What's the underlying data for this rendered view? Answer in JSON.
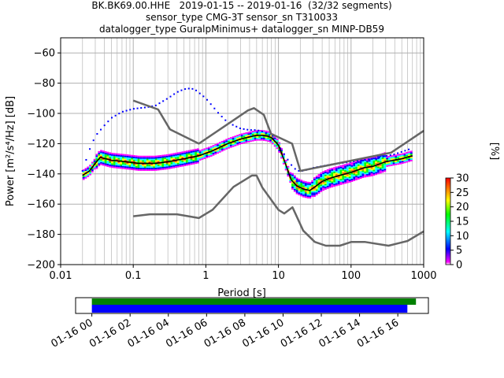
{
  "chart_data": [
    {
      "type": "line",
      "subtype": "probabilistic-power-spectral-density",
      "title_lines": [
        "BK.BK69.00.HHE   2019-01-15 -- 2019-01-16  (32/32 segments)",
        "sensor_type CMG-3T sensor_sn T310033",
        "datalogger_type GuralpMinimus+ datalogger_sn MINP-DB59"
      ],
      "xlabel": "Period [s]",
      "ylabel": "Power [m²/s⁴/Hz] [dB]",
      "xscale": "log",
      "xlim": [
        0.01,
        1000
      ],
      "ylim": [
        -200,
        -50
      ],
      "x_ticks": [
        0.01,
        0.1,
        1,
        10,
        100,
        1000
      ],
      "x_tick_labels": [
        "0.01",
        "0.1",
        "1",
        "10",
        "100",
        "1000"
      ],
      "y_ticks": [
        -200,
        -180,
        -160,
        -140,
        -120,
        -100,
        -80,
        -60
      ],
      "y_tick_labels": [
        "−200",
        "−180",
        "−160",
        "−140",
        "−120",
        "−100",
        "−80",
        "−60"
      ],
      "grid": true,
      "colorbar": {
        "label": "[%]",
        "range": [
          0,
          30
        ],
        "ticks": [
          0,
          5,
          10,
          15,
          20,
          25,
          30
        ],
        "tick_labels": [
          "0",
          "5",
          "10",
          "15",
          "20",
          "25",
          "30"
        ],
        "colors": [
          "#ffffff",
          "#ff00ff",
          "#0000ff",
          "#00ffff",
          "#00ff00",
          "#ffff00",
          "#ff8000",
          "#ff0000"
        ]
      },
      "series": [
        {
          "role": "mode",
          "color": "#000000",
          "x": [
            0.02,
            0.025,
            0.03,
            0.035,
            0.05,
            0.08,
            0.12,
            0.2,
            0.3,
            0.5,
            0.8,
            1.2,
            2,
            3,
            4,
            5,
            6,
            7,
            8,
            10,
            12,
            15,
            18,
            22,
            27,
            33,
            40,
            50,
            70,
            100,
            150,
            200,
            300,
            500,
            700
          ],
          "y": [
            -141,
            -138,
            -133,
            -129,
            -131,
            -132,
            -133,
            -133,
            -132,
            -130,
            -128,
            -125,
            -120,
            -117,
            -115.5,
            -114.5,
            -114.5,
            -115,
            -116,
            -121,
            -131,
            -144,
            -148,
            -150,
            -151,
            -148,
            -145,
            -143,
            -141,
            -139,
            -136,
            -135,
            -132,
            -130,
            -128
          ]
        },
        {
          "role": "noise-model-high",
          "color": "#666666",
          "x": [
            0.1,
            0.22,
            0.32,
            0.8,
            3.8,
            4.6,
            6.3,
            7.9,
            15.4,
            20,
            354.8,
            1000
          ],
          "y": [
            -91.5,
            -97.4,
            -110.5,
            -120,
            -98,
            -96.5,
            -101,
            -113.5,
            -120,
            -138,
            -126,
            -111.5
          ]
        },
        {
          "role": "noise-model-low",
          "color": "#666666",
          "x": [
            0.1,
            0.17,
            0.4,
            0.8,
            1.24,
            2.4,
            4.3,
            5.0,
            6.0,
            10.0,
            12.0,
            15.6,
            21.9,
            31.6,
            45,
            70,
            101,
            154,
            328,
            600,
            1000
          ],
          "y": [
            -168,
            -166.7,
            -166.7,
            -169.2,
            -163.7,
            -148.6,
            -141.1,
            -141.1,
            -149,
            -163.8,
            -166.2,
            -162.1,
            -177.5,
            -185,
            -187.5,
            -187.5,
            -185,
            -185,
            -187.5,
            -184.4,
            -178
          ]
        },
        {
          "role": "ppsd-upper-envelope",
          "color": "#0000ff",
          "x": [
            0.02,
            0.025,
            0.03,
            0.04,
            0.05,
            0.07,
            0.1,
            0.15,
            0.2,
            0.3,
            0.4,
            0.5,
            0.6,
            0.7,
            1,
            1.5,
            2,
            3,
            4,
            5,
            6,
            8,
            10,
            12,
            15,
            18,
            22,
            30,
            50,
            100,
            200,
            400,
            700
          ],
          "y": [
            -138,
            -124,
            -115,
            -108,
            -103,
            -99,
            -97,
            -96,
            -95,
            -90,
            -86,
            -84,
            -83.5,
            -84,
            -90,
            -100,
            -106,
            -110,
            -111,
            -111,
            -112,
            -115,
            -121,
            -127,
            -134,
            -138,
            -138,
            -136,
            -134,
            -132,
            -130,
            -127,
            -123
          ]
        }
      ]
    },
    {
      "type": "timeline",
      "x_tick_labels": [
        "01-16 00",
        "01-16 02",
        "01-16 04",
        "01-16 06",
        "01-16 08",
        "01-16 10",
        "01-16 12",
        "01-16 14",
        "01-16 16"
      ],
      "xlim_hours": [
        -0.85,
        17.6
      ],
      "bars": [
        {
          "role": "data-coverage",
          "color": "#008000",
          "start_hour": 0,
          "end_hour": 16.95
        },
        {
          "role": "processed-segments",
          "color": "#0000ff",
          "start_hour": 0,
          "end_hour": 16.5
        }
      ]
    }
  ]
}
